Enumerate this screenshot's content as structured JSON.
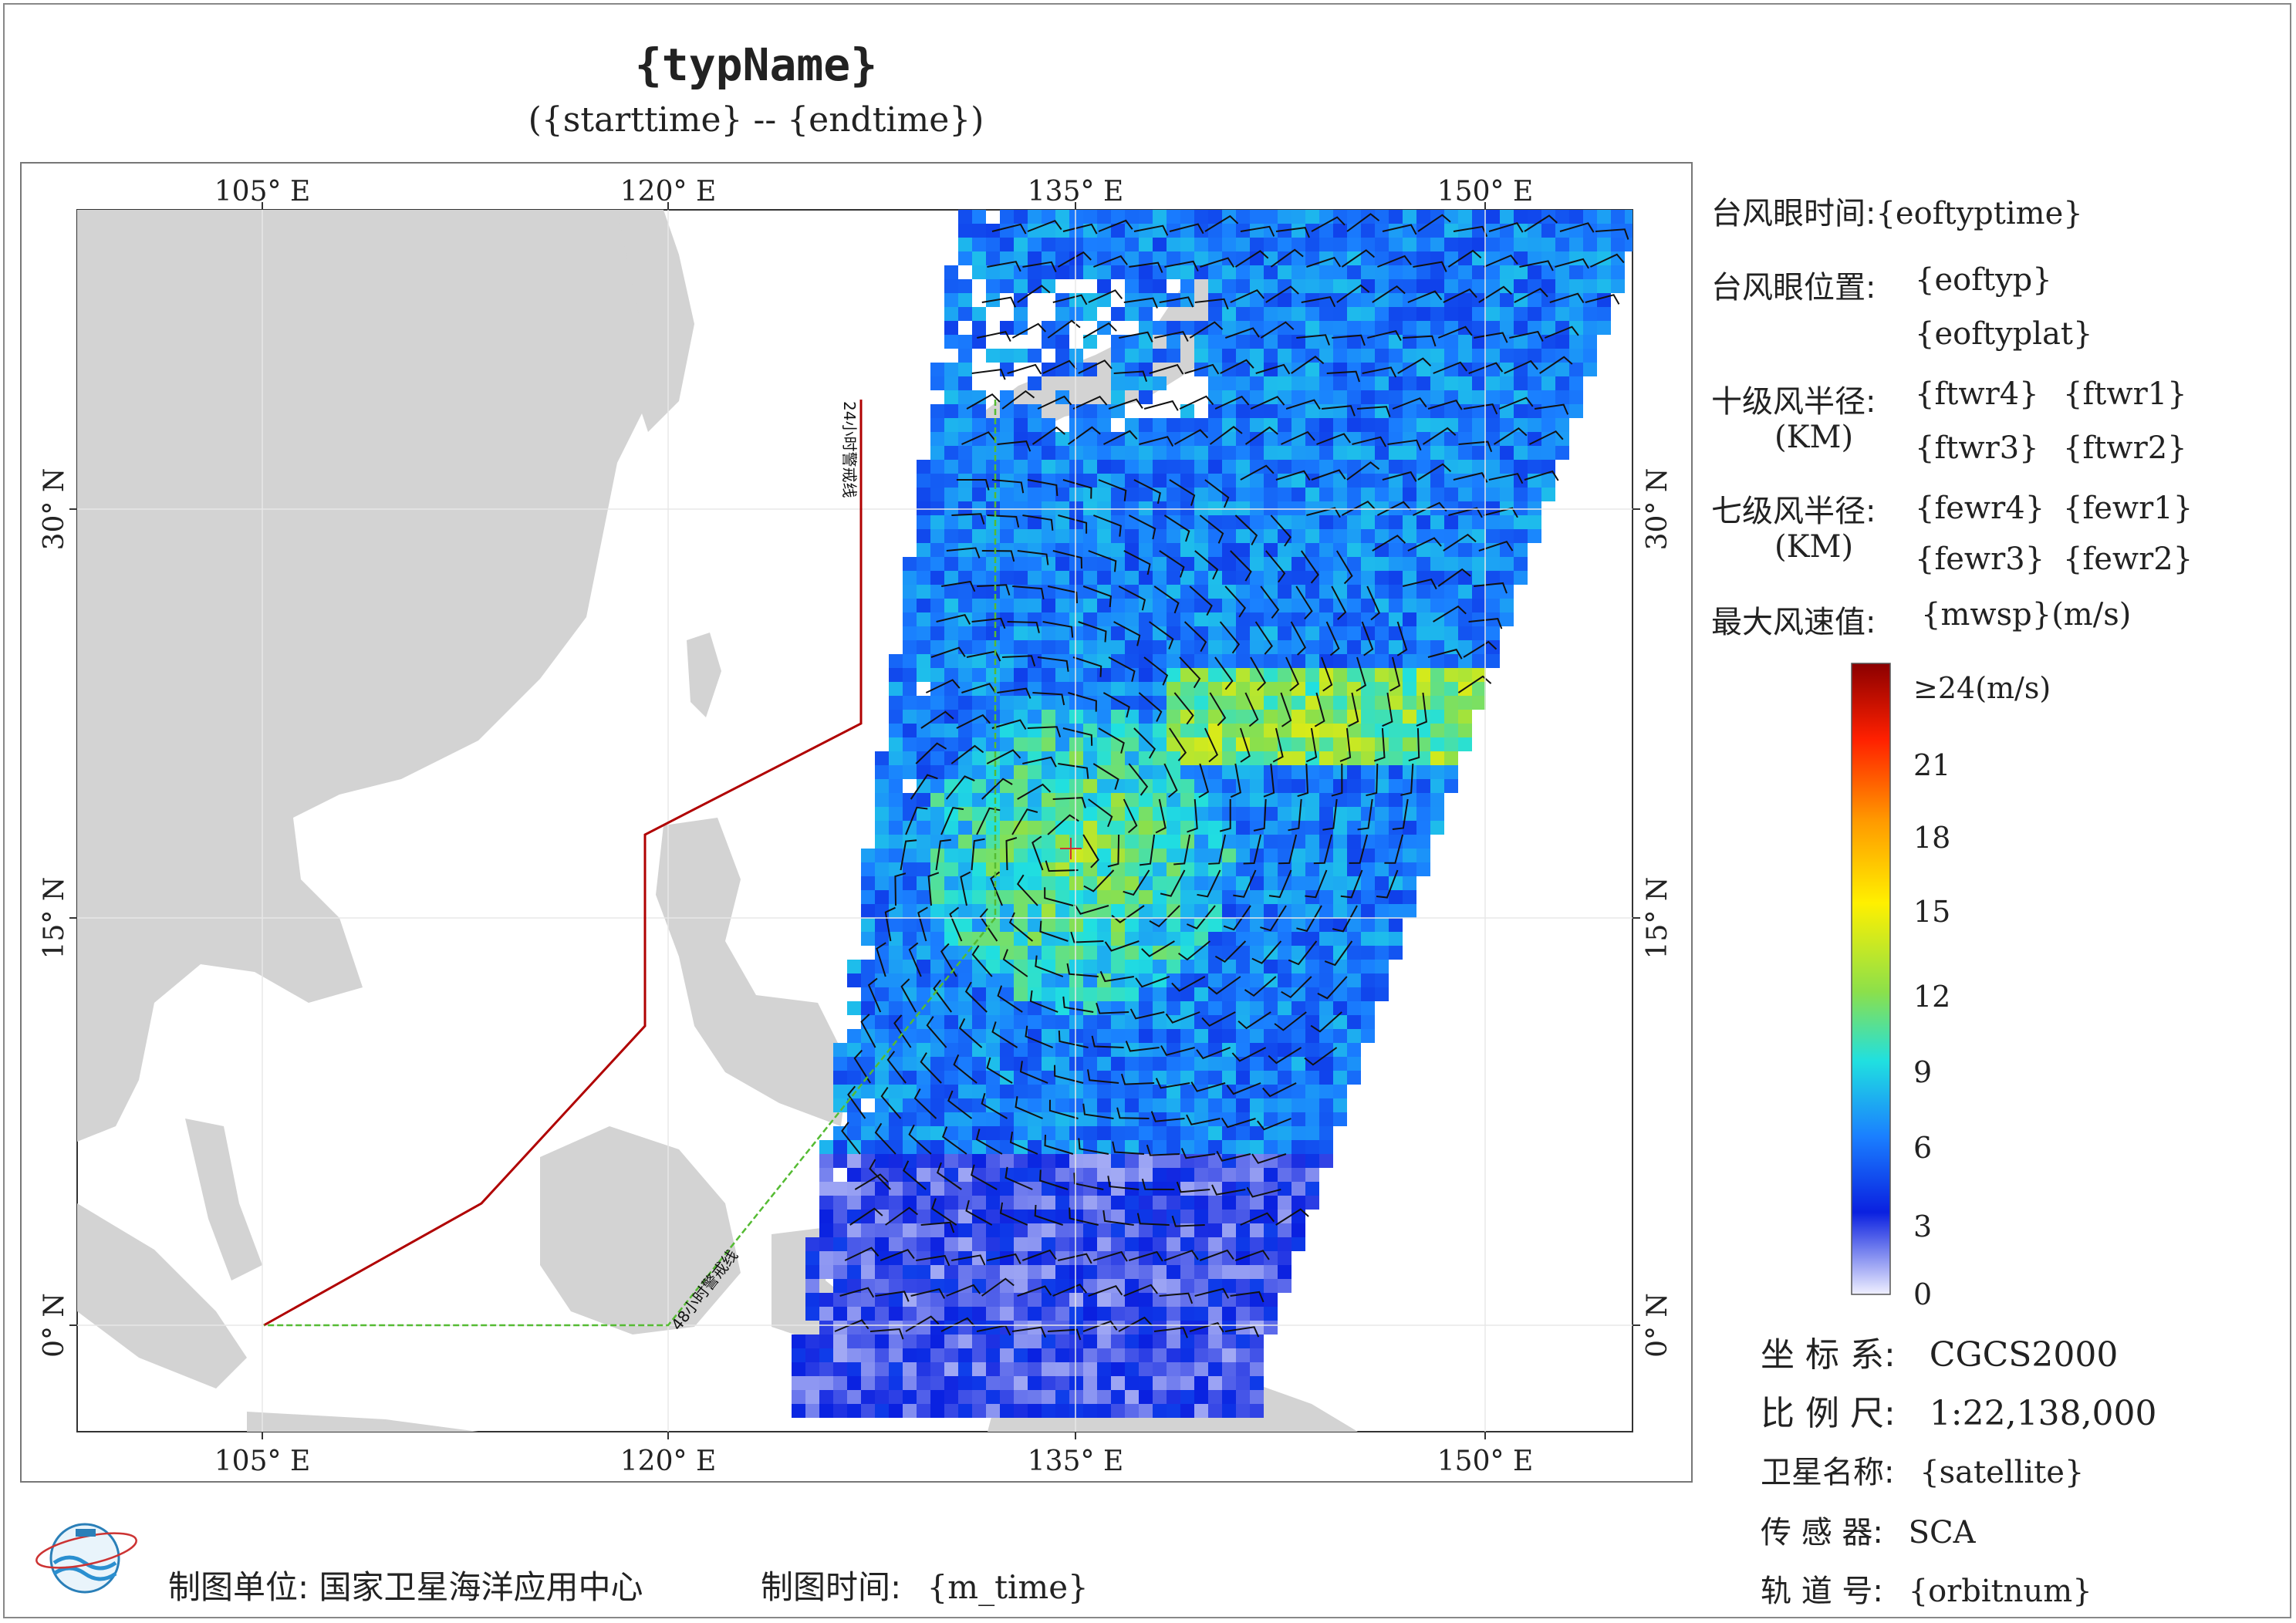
{
  "title": "{typName}",
  "subtitle": "({starttime} -- {endtime})",
  "axes": {
    "top_lon_labels": [
      "105° E",
      "120° E",
      "135° E",
      "150° E"
    ],
    "bottom_lon_labels": [
      "105° E",
      "120° E",
      "135° E",
      "150° E"
    ],
    "left_lat_labels": [
      "30° N",
      "15° N",
      "0° N"
    ],
    "right_lat_labels": [
      "30° N",
      "15° N",
      "0° N"
    ]
  },
  "map_lines": {
    "warning_24h_label": "24小时警戒线",
    "warning_48h_label": "48小时警戒线",
    "warning_24h_color": "#b00000",
    "warning_48h_color": "#55bb33"
  },
  "info": {
    "eye_time_label": "台风眼时间:",
    "eye_time_value": "{eoftyptime}",
    "eye_pos_label": "台风眼位置:",
    "eye_pos_value1": "{eoftyp}",
    "eye_pos_value2": "{eoftyplat}",
    "r10_label": "十级风半径:",
    "r10_unit": "(KM)",
    "r10_values": [
      "{ftwr4}",
      "{ftwr1}",
      "{ftwr3}",
      "{ftwr2}"
    ],
    "r7_label": "七级风半径:",
    "r7_unit": "(KM)",
    "r7_values": [
      "{fewr4}",
      "{fewr1}",
      "{fewr3}",
      "{fewr2}"
    ],
    "max_wind_label": "最大风速值:",
    "max_wind_value": "{mwsp}(m/s)"
  },
  "colorbar": {
    "labels": [
      "≥24(m/s)",
      "21",
      "18",
      "15",
      "12",
      "9",
      "6",
      "3",
      "0"
    ],
    "colors": [
      "#8b0000",
      "#ff2000",
      "#ff9a00",
      "#fff000",
      "#8ce04a",
      "#20e0e0",
      "#1a7fff",
      "#0a20e0",
      "#f0f0ff"
    ]
  },
  "meta": {
    "crs_label": "坐 标 系:",
    "crs_value": "CGCS2000",
    "scale_label": "比 例 尺:",
    "scale_value": "1:22,138,000",
    "satellite_label": "卫星名称:",
    "satellite_value": "{satellite}",
    "sensor_label": "传 感 器:",
    "sensor_value": "SCA",
    "orbit_label": "轨 道 号:",
    "orbit_value": "{orbitnum}"
  },
  "footer": {
    "producer_label": "制图单位:",
    "producer_value": "国家卫星海洋应用中心",
    "time_label": "制图时间:",
    "time_value": "{m_time}"
  }
}
